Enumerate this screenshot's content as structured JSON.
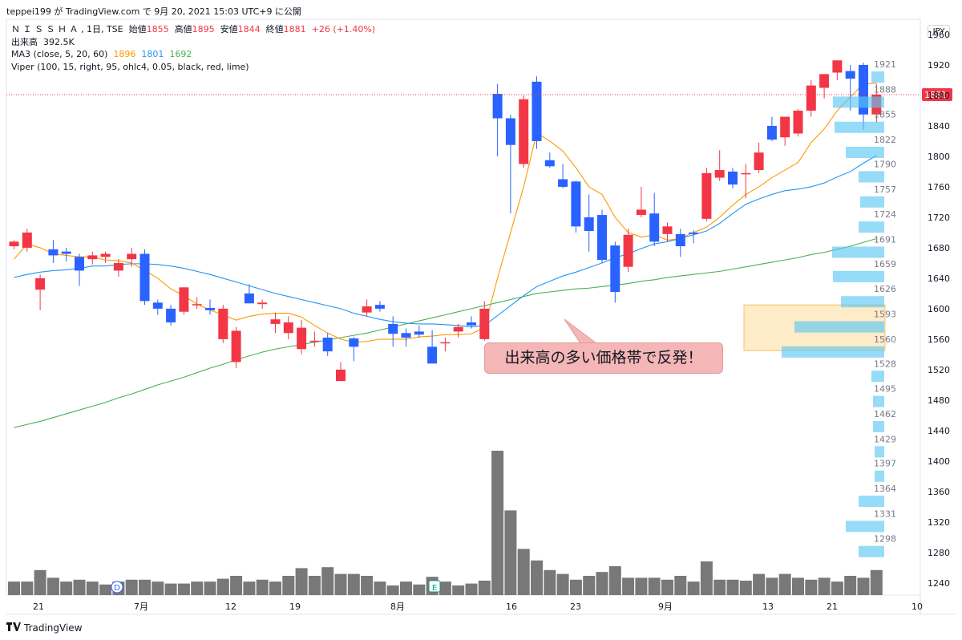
{
  "header": {
    "publish_line": "teppei199 が TradingView.com で 9月 20, 2021 15:03 UTC+9 に公開"
  },
  "legend": {
    "symbol": "Ｎ Ｉ Ｓ Ｓ Ｈ Ａ , 1日, TSE",
    "open_label": "始値",
    "open_value": "1855",
    "high_label": "高値",
    "high_value": "1895",
    "low_label": "安値",
    "low_value": "1844",
    "close_label": "終値",
    "close_value": "1881",
    "change_value": "+26 (+1.40%)",
    "volume_label": "出来高",
    "volume_value": "392.5K",
    "ma_label": "MA3 (close, 5, 20, 60)",
    "ma5_value": "1896",
    "ma20_value": "1801",
    "ma60_value": "1692",
    "viper_label": "Viper (100, 15, right, 95, ohlc4, 0.05, black, red, lime)"
  },
  "currency": "JPY",
  "current_price_label": "1881",
  "annotation": "出来高の多い価格帯で反発！",
  "footer": {
    "logo_text": "TradingView"
  },
  "colors": {
    "up": "#f23645",
    "down": "#2962ff",
    "ma5": "#ff9800",
    "ma20": "#2196f3",
    "ma60": "#4caf50",
    "volume": "#787878",
    "profile": "#5ec8f2",
    "price_line": "#f23645"
  },
  "chart_data": {
    "type": "candlestick",
    "price_axis": {
      "ticks": [
        1240,
        1280,
        1320,
        1360,
        1400,
        1440,
        1480,
        1520,
        1560,
        1600,
        1640,
        1680,
        1720,
        1760,
        1800,
        1840,
        1880,
        1920,
        1960
      ],
      "range": [
        1224,
        1980
      ]
    },
    "time_axis_labels": [
      "21",
      "7月",
      "12",
      "19",
      "8月",
      "16",
      "23",
      "9月",
      "13",
      "21",
      "10"
    ],
    "event_markers": [
      "D",
      "E"
    ],
    "candles": [
      {
        "o": 1682,
        "h": 1690,
        "l": 1678,
        "c": 1688,
        "v": 14
      },
      {
        "o": 1680,
        "h": 1705,
        "l": 1675,
        "c": 1700,
        "v": 14
      },
      {
        "o": 1625,
        "h": 1645,
        "l": 1598,
        "c": 1640,
        "v": 26
      },
      {
        "o": 1678,
        "h": 1690,
        "l": 1660,
        "c": 1670,
        "v": 18
      },
      {
        "o": 1675,
        "h": 1680,
        "l": 1662,
        "c": 1672,
        "v": 14
      },
      {
        "o": 1668,
        "h": 1672,
        "l": 1630,
        "c": 1650,
        "v": 16
      },
      {
        "o": 1665,
        "h": 1675,
        "l": 1658,
        "c": 1670,
        "v": 14
      },
      {
        "o": 1668,
        "h": 1675,
        "l": 1660,
        "c": 1672,
        "v": 11
      },
      {
        "o": 1650,
        "h": 1665,
        "l": 1642,
        "c": 1660,
        "v": 14
      },
      {
        "o": 1665,
        "h": 1680,
        "l": 1655,
        "c": 1672,
        "v": 16
      },
      {
        "o": 1672,
        "h": 1678,
        "l": 1605,
        "c": 1610,
        "v": 16
      },
      {
        "o": 1608,
        "h": 1612,
        "l": 1592,
        "c": 1600,
        "v": 14
      },
      {
        "o": 1600,
        "h": 1605,
        "l": 1578,
        "c": 1582,
        "v": 12
      },
      {
        "o": 1596,
        "h": 1628,
        "l": 1592,
        "c": 1628,
        "v": 12
      },
      {
        "o": 1606,
        "h": 1615,
        "l": 1600,
        "c": 1606,
        "v": 14
      },
      {
        "o": 1601,
        "h": 1612,
        "l": 1592,
        "c": 1598,
        "v": 14
      },
      {
        "o": 1560,
        "h": 1605,
        "l": 1555,
        "c": 1600,
        "v": 17
      },
      {
        "o": 1530,
        "h": 1576,
        "l": 1522,
        "c": 1571,
        "v": 20
      },
      {
        "o": 1620,
        "h": 1632,
        "l": 1607,
        "c": 1607,
        "v": 14
      },
      {
        "o": 1606,
        "h": 1612,
        "l": 1600,
        "c": 1608,
        "v": 16
      },
      {
        "o": 1580,
        "h": 1595,
        "l": 1568,
        "c": 1586,
        "v": 14
      },
      {
        "o": 1568,
        "h": 1590,
        "l": 1560,
        "c": 1582,
        "v": 20
      },
      {
        "o": 1547,
        "h": 1585,
        "l": 1540,
        "c": 1575,
        "v": 28
      },
      {
        "o": 1558,
        "h": 1570,
        "l": 1550,
        "c": 1558,
        "v": 20
      },
      {
        "o": 1562,
        "h": 1568,
        "l": 1538,
        "c": 1544,
        "v": 29
      },
      {
        "o": 1505,
        "h": 1530,
        "l": 1505,
        "c": 1520,
        "v": 22
      },
      {
        "o": 1561,
        "h": 1563,
        "l": 1531,
        "c": 1550,
        "v": 22
      },
      {
        "o": 1595,
        "h": 1612,
        "l": 1590,
        "c": 1603,
        "v": 20
      },
      {
        "o": 1605,
        "h": 1610,
        "l": 1596,
        "c": 1600,
        "v": 14
      },
      {
        "o": 1580,
        "h": 1590,
        "l": 1550,
        "c": 1567,
        "v": 10
      },
      {
        "o": 1568,
        "h": 1574,
        "l": 1550,
        "c": 1562,
        "v": 14
      },
      {
        "o": 1570,
        "h": 1578,
        "l": 1562,
        "c": 1566,
        "v": 11
      },
      {
        "o": 1550,
        "h": 1572,
        "l": 1532,
        "c": 1528,
        "v": 19
      },
      {
        "o": 1556,
        "h": 1562,
        "l": 1544,
        "c": 1556,
        "v": 14
      },
      {
        "o": 1570,
        "h": 1580,
        "l": 1562,
        "c": 1576,
        "v": 10
      },
      {
        "o": 1582,
        "h": 1590,
        "l": 1574,
        "c": 1578,
        "v": 12
      },
      {
        "o": 1560,
        "h": 1610,
        "l": 1558,
        "c": 1600,
        "v": 15
      },
      {
        "o": 1882,
        "h": 1895,
        "l": 1800,
        "c": 1850,
        "v": 150
      },
      {
        "o": 1850,
        "h": 1855,
        "l": 1725,
        "c": 1815,
        "v": 88
      },
      {
        "o": 1790,
        "h": 1880,
        "l": 1785,
        "c": 1875,
        "v": 48
      },
      {
        "o": 1898,
        "h": 1905,
        "l": 1810,
        "c": 1820,
        "v": 36
      },
      {
        "o": 1795,
        "h": 1805,
        "l": 1785,
        "c": 1787,
        "v": 26
      },
      {
        "o": 1770,
        "h": 1790,
        "l": 1758,
        "c": 1760,
        "v": 22
      },
      {
        "o": 1767,
        "h": 1768,
        "l": 1700,
        "c": 1708,
        "v": 16
      },
      {
        "o": 1720,
        "h": 1750,
        "l": 1675,
        "c": 1702,
        "v": 20
      },
      {
        "o": 1723,
        "h": 1730,
        "l": 1660,
        "c": 1664,
        "v": 24
      },
      {
        "o": 1683,
        "h": 1688,
        "l": 1608,
        "c": 1622,
        "v": 30
      },
      {
        "o": 1655,
        "h": 1705,
        "l": 1648,
        "c": 1697,
        "v": 18
      },
      {
        "o": 1723,
        "h": 1760,
        "l": 1720,
        "c": 1730,
        "v": 18
      },
      {
        "o": 1725,
        "h": 1752,
        "l": 1682,
        "c": 1688,
        "v": 18
      },
      {
        "o": 1698,
        "h": 1713,
        "l": 1688,
        "c": 1708,
        "v": 16
      },
      {
        "o": 1698,
        "h": 1705,
        "l": 1668,
        "c": 1682,
        "v": 20
      },
      {
        "o": 1700,
        "h": 1703,
        "l": 1686,
        "c": 1698,
        "v": 14
      },
      {
        "o": 1718,
        "h": 1785,
        "l": 1715,
        "c": 1778,
        "v": 35
      },
      {
        "o": 1772,
        "h": 1808,
        "l": 1768,
        "c": 1782,
        "v": 16
      },
      {
        "o": 1780,
        "h": 1785,
        "l": 1758,
        "c": 1763,
        "v": 16
      },
      {
        "o": 1778,
        "h": 1790,
        "l": 1745,
        "c": 1778,
        "v": 15
      },
      {
        "o": 1782,
        "h": 1818,
        "l": 1778,
        "c": 1805,
        "v": 22
      },
      {
        "o": 1840,
        "h": 1852,
        "l": 1820,
        "c": 1822,
        "v": 18
      },
      {
        "o": 1825,
        "h": 1852,
        "l": 1814,
        "c": 1852,
        "v": 22
      },
      {
        "o": 1830,
        "h": 1862,
        "l": 1826,
        "c": 1860,
        "v": 18
      },
      {
        "o": 1860,
        "h": 1900,
        "l": 1852,
        "c": 1893,
        "v": 16
      },
      {
        "o": 1890,
        "h": 1908,
        "l": 1876,
        "c": 1908,
        "v": 18
      },
      {
        "o": 1910,
        "h": 1926,
        "l": 1900,
        "c": 1926,
        "v": 14
      },
      {
        "o": 1912,
        "h": 1920,
        "l": 1860,
        "c": 1902,
        "v": 20
      },
      {
        "o": 1920,
        "h": 1923,
        "l": 1835,
        "c": 1855,
        "v": 18
      },
      {
        "o": 1855,
        "h": 1895,
        "l": 1844,
        "c": 1881,
        "v": 26
      }
    ],
    "ma5": [
      1665,
      1685,
      1680,
      1672,
      1670,
      1668,
      1668,
      1664,
      1663,
      1660,
      1650,
      1640,
      1626,
      1617,
      1606,
      1598,
      1592,
      1585,
      1590,
      1593,
      1594,
      1594,
      1589,
      1578,
      1568,
      1560,
      1556,
      1557,
      1560,
      1560,
      1560,
      1563,
      1564,
      1566,
      1566,
      1567,
      1575,
      1640,
      1700,
      1760,
      1831,
      1820,
      1807,
      1785,
      1760,
      1750,
      1720,
      1700,
      1694,
      1697,
      1690,
      1692,
      1700,
      1707,
      1720,
      1736,
      1750,
      1760,
      1772,
      1782,
      1792,
      1818,
      1836,
      1860,
      1878,
      1895,
      1896
    ],
    "ma20": [
      1641,
      1645,
      1648,
      1650,
      1651,
      1653,
      1656,
      1656,
      1658,
      1659,
      1659,
      1658,
      1656,
      1653,
      1649,
      1645,
      1640,
      1635,
      1630,
      1625,
      1620,
      1616,
      1612,
      1608,
      1604,
      1600,
      1594,
      1590,
      1586,
      1583,
      1581,
      1580,
      1580,
      1579,
      1578,
      1576,
      1578,
      1591,
      1604,
      1617,
      1629,
      1636,
      1643,
      1648,
      1654,
      1660,
      1667,
      1672,
      1679,
      1685,
      1688,
      1692,
      1697,
      1702,
      1712,
      1725,
      1737,
      1744,
      1750,
      1755,
      1757,
      1760,
      1765,
      1773,
      1780,
      1791,
      1801
    ],
    "ma60": [
      1444,
      1448,
      1452,
      1457,
      1462,
      1467,
      1472,
      1477,
      1483,
      1488,
      1494,
      1500,
      1505,
      1510,
      1516,
      1522,
      1527,
      1533,
      1538,
      1543,
      1547,
      1550,
      1553,
      1556,
      1559,
      1562,
      1565,
      1568,
      1572,
      1576,
      1580,
      1584,
      1588,
      1592,
      1596,
      1600,
      1604,
      1608,
      1612,
      1616,
      1620,
      1622,
      1624,
      1626,
      1627,
      1629,
      1631,
      1633,
      1636,
      1638,
      1641,
      1643,
      1645,
      1647,
      1649,
      1652,
      1655,
      1658,
      1661,
      1664,
      1667,
      1671,
      1674,
      1678,
      1682,
      1687,
      1692
    ],
    "volume_profile": {
      "levels": [
        "1921",
        "1888",
        "1855",
        "1822",
        "1790",
        "1757",
        "1724",
        "1691",
        "1659",
        "1626",
        "1593",
        "1560",
        "1528",
        "1495",
        "1462",
        "1429",
        "1397",
        "1364",
        "1331",
        "1298"
      ],
      "sizes": [
        16,
        64,
        62,
        48,
        32,
        30,
        32,
        65,
        64,
        54,
        112,
        128,
        16,
        14,
        14,
        12,
        12,
        32,
        48,
        32
      ]
    },
    "highlight_zone": {
      "from": 1545,
      "to": 1605
    },
    "last_price": 1881
  }
}
